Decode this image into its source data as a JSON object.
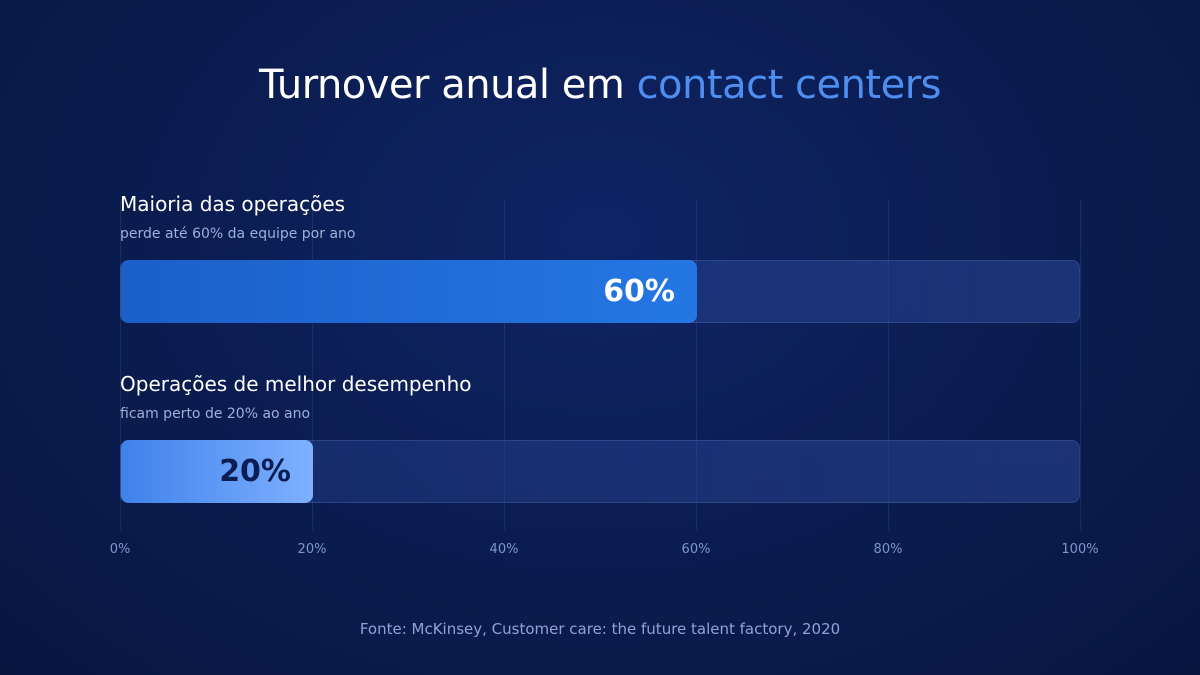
{
  "title": {
    "main": "Turnover anual em",
    "accent": "contact centers"
  },
  "source": "Fonte: McKinsey, Customer care: the future talent factory, 2020",
  "colors": {
    "accent": "#4d8ef0",
    "bar_primary": "#2477e3",
    "bar_secondary": "#7eb0ff",
    "background": "#0b1d52"
  },
  "chart_data": {
    "type": "bar",
    "orientation": "horizontal",
    "xlim": [
      0,
      100
    ],
    "x_ticks": [
      "0%",
      "20%",
      "40%",
      "60%",
      "80%",
      "100%"
    ],
    "grid": true,
    "categories": [
      {
        "label": "Maioria das operações",
        "sublabel": "perde até 60% da equipe por ano",
        "value": 60,
        "value_label": "60%"
      },
      {
        "label": "Operações de melhor desempenho",
        "sublabel": "ficam perto de 20% ao ano",
        "value": 20,
        "value_label": "20%"
      }
    ]
  }
}
